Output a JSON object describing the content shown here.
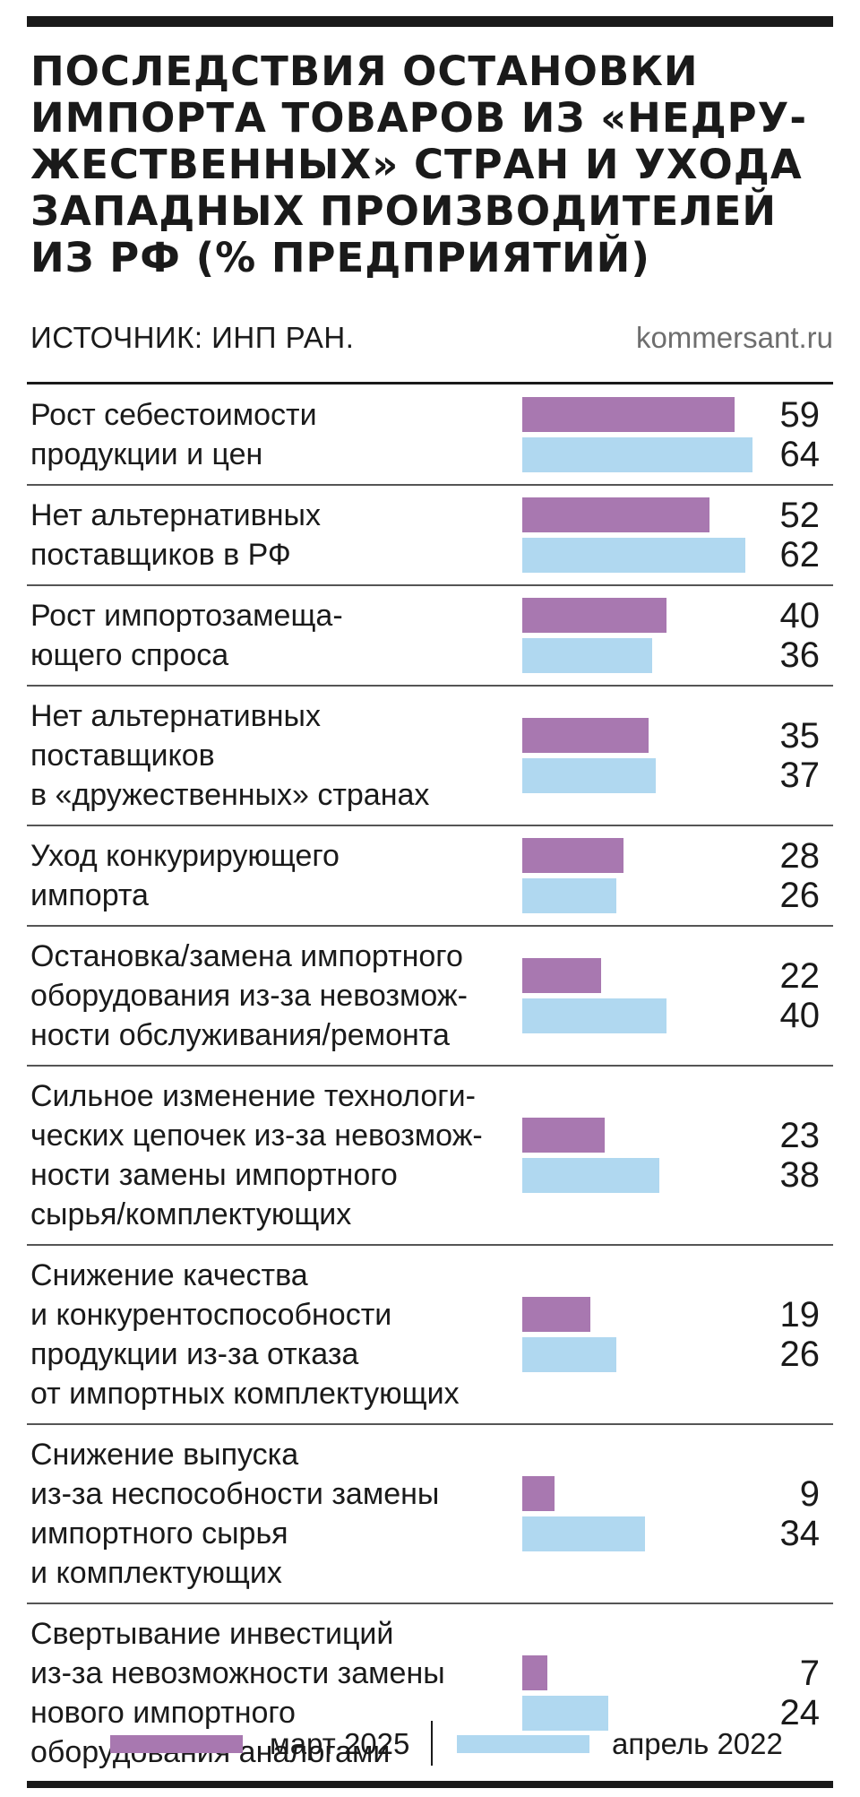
{
  "title_lines": [
    "ПОСЛЕДСТВИЯ ОСТАНОВКИ",
    "ИМПОРТА ТОВАРОВ ИЗ «НЕДРУ-",
    "ЖЕСТВЕННЫХ» СТРАН И УХОДА",
    "ЗАПАДНЫХ ПРОИЗВОДИТЕЛЕЙ",
    "ИЗ РФ (% ПРЕДПРИЯТИЙ)"
  ],
  "source": "ИСТОЧНИК: ИНП РАН.",
  "site": "kommersant.ru",
  "colors": {
    "march_2025": "#a878b0",
    "april_2022": "#b0d8f0",
    "rule": "#1a1a1a",
    "site_text": "#6e6e6e"
  },
  "legend": {
    "march_2025": "март 2025",
    "april_2022": "апрель 2022"
  },
  "chart_data": {
    "type": "bar",
    "orientation": "horizontal",
    "title": "ПОСЛЕДСТВИЯ ОСТАНОВКИ ИМПОРТА ТОВАРОВ ИЗ «НЕДРУЖЕСТВЕННЫХ» СТРАН И УХОДА ЗАПАДНЫХ ПРОИЗВОДИТЕЛЕЙ ИЗ РФ (% ПРЕДПРИЯТИЙ)",
    "unit": "% предприятий",
    "xlim": [
      0,
      64
    ],
    "categories": [
      [
        "Рост себестоимости",
        "продукции и цен"
      ],
      [
        "Нет альтернативных",
        "поставщиков в РФ"
      ],
      [
        "Рост импортозамеща-",
        "ющего спроса"
      ],
      [
        "Нет альтернативных",
        "поставщиков",
        "в «дружественных» странах"
      ],
      [
        "Уход конкурирующего",
        "импорта"
      ],
      [
        "Остановка/замена импортного",
        "оборудования из-за невозмож-",
        "ности обслуживания/ремонта"
      ],
      [
        "Сильное изменение технологи-",
        "ческих цепочек из-за невозмож-",
        "ности замены импортного",
        "сырья/комплектующих"
      ],
      [
        "Снижение качества",
        "и конкурентоспособности",
        "продукции из-за отказа",
        "от импортных комплектующих"
      ],
      [
        "Снижение выпуска",
        "из-за неспособности замены",
        "импортного сырья",
        "и комплектующих"
      ],
      [
        "Свертывание инвестиций",
        "из-за невозможности замены",
        "нового импортного",
        "оборудования аналогами"
      ]
    ],
    "series": [
      {
        "name": "март 2025",
        "color": "#a878b0",
        "values": [
          59,
          52,
          40,
          35,
          28,
          22,
          23,
          19,
          9,
          7
        ]
      },
      {
        "name": "апрель 2022",
        "color": "#b0d8f0",
        "values": [
          64,
          62,
          36,
          37,
          26,
          40,
          38,
          26,
          34,
          24
        ]
      }
    ]
  }
}
